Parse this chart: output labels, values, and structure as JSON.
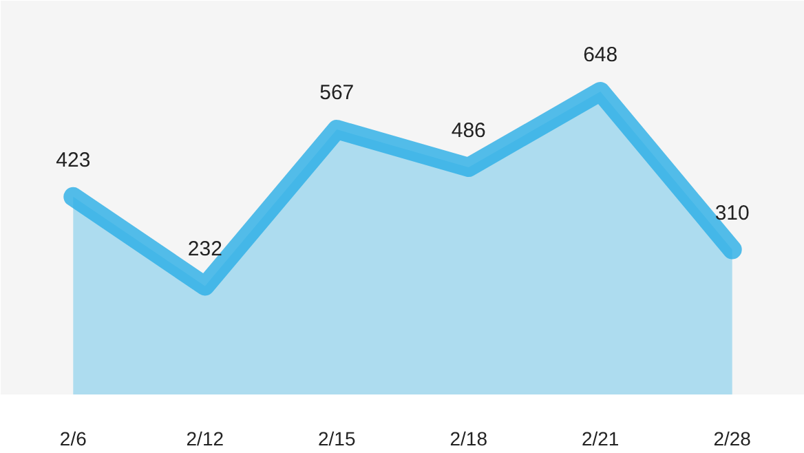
{
  "chart_data": {
    "type": "area",
    "categories": [
      "2/6",
      "2/12",
      "2/15",
      "2/18",
      "2/21",
      "2/28"
    ],
    "values": [
      423,
      232,
      567,
      486,
      648,
      310
    ],
    "color": "#29aee6",
    "data_labels": true
  }
}
